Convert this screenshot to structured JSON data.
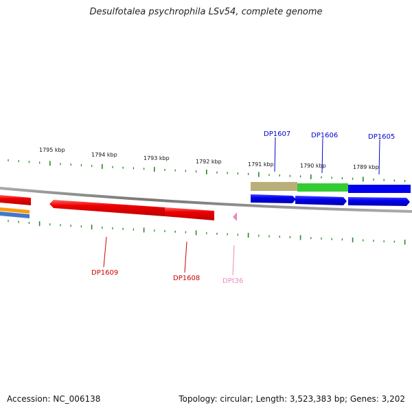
{
  "title": "Desulfotalea psychrophila LSv54, complete genome",
  "footer": {
    "accession": "Accession: NC_006138",
    "summary": "Topology: circular; Length: 3,523,383 bp; Genes: 3,202"
  },
  "scale_labels": [
    "1795 kbp",
    "1794 kbp",
    "1793 kbp",
    "1792 kbp",
    "1791 kbp",
    "1790 kbp",
    "1789 kbp"
  ],
  "genes": [
    {
      "name": "DP1607",
      "strand": "forward",
      "color": "#0000cc"
    },
    {
      "name": "DP1606",
      "strand": "forward",
      "color": "#0000cc"
    },
    {
      "name": "DP1605",
      "strand": "forward",
      "color": "#0000cc"
    },
    {
      "name": "DP1609",
      "strand": "reverse",
      "color": "#cc0000"
    },
    {
      "name": "DP1608",
      "strand": "reverse",
      "color": "#cc0000"
    },
    {
      "name": "DPt36",
      "strand": "reverse",
      "color": "#ee88bb"
    }
  ],
  "colors": {
    "backbone": "#888888",
    "ticks": "#228822",
    "forward_gene": "#0000dd",
    "reverse_gene": "#ee0000",
    "trna": "#ee88bb",
    "cog_olive": "#b8b078",
    "cog_green": "#33cc33",
    "cog_blue": "#0000ee",
    "cog_orange": "#ff9900",
    "cog_steel": "#4477cc"
  }
}
